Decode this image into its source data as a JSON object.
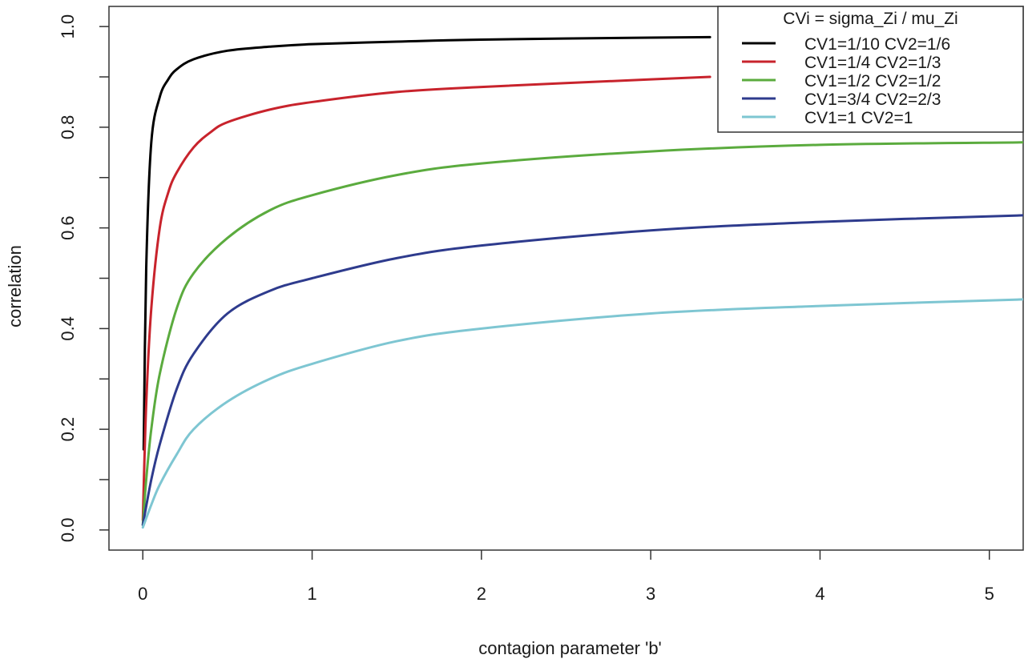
{
  "chart_data": {
    "type": "line",
    "title": "",
    "xlabel": "contagion parameter 'b'",
    "ylabel": "correlation",
    "xlim": [
      -0.2,
      5.2
    ],
    "ylim": [
      -0.04,
      1.04
    ],
    "x_ticks": [
      0,
      1,
      2,
      3,
      4,
      5
    ],
    "x_tick_labels": [
      "0",
      "1",
      "2",
      "3",
      "4",
      "5"
    ],
    "y_ticks": [
      0.0,
      0.1,
      0.2,
      0.3,
      0.4,
      0.5,
      0.6,
      0.7,
      0.8,
      0.9,
      1.0
    ],
    "y_tick_labels": [
      "0.0",
      "",
      "0.2",
      "",
      "0.4",
      "",
      "0.6",
      "",
      "0.8",
      "",
      "1.0"
    ],
    "grid": false,
    "legend": {
      "title": "CVi = sigma_Zi / mu_Zi",
      "placement": "top-right"
    },
    "series": [
      {
        "name": "CV1=1/10 CV2=1/6",
        "color": "#000000",
        "x": [
          0.005,
          0.02,
          0.05,
          0.1,
          0.15,
          0.2,
          0.3,
          0.5,
          0.75,
          1.0,
          1.5,
          2.0,
          3.0,
          3.35
        ],
        "y": [
          0.16,
          0.52,
          0.77,
          0.86,
          0.895,
          0.915,
          0.935,
          0.952,
          0.96,
          0.965,
          0.97,
          0.974,
          0.978,
          0.979
        ]
      },
      {
        "name": "CV1=1/4 CV2=1/3",
        "color": "#c8232c",
        "x": [
          0.0,
          0.02,
          0.05,
          0.1,
          0.15,
          0.2,
          0.3,
          0.4,
          0.5,
          0.75,
          1.0,
          1.5,
          2.0,
          3.0,
          3.35
        ],
        "y": [
          0.02,
          0.25,
          0.44,
          0.6,
          0.67,
          0.71,
          0.76,
          0.79,
          0.81,
          0.835,
          0.85,
          0.87,
          0.88,
          0.895,
          0.9
        ]
      },
      {
        "name": "CV1=1/2 CV2=1/2",
        "color": "#5bab3e",
        "x": [
          0.0,
          0.02,
          0.05,
          0.1,
          0.2,
          0.3,
          0.5,
          0.75,
          1.0,
          1.5,
          2.0,
          3.0,
          4.0,
          5.2
        ],
        "y": [
          0.01,
          0.1,
          0.2,
          0.31,
          0.44,
          0.51,
          0.58,
          0.635,
          0.665,
          0.705,
          0.728,
          0.752,
          0.765,
          0.77
        ]
      },
      {
        "name": "CV1=3/4 CV2=2/3",
        "color": "#2e3b8d",
        "x": [
          0.0,
          0.05,
          0.1,
          0.2,
          0.3,
          0.5,
          0.75,
          1.0,
          1.5,
          2.0,
          3.0,
          4.0,
          5.2
        ],
        "y": [
          0.01,
          0.1,
          0.17,
          0.28,
          0.35,
          0.43,
          0.475,
          0.5,
          0.54,
          0.565,
          0.595,
          0.612,
          0.625
        ]
      },
      {
        "name": "CV1=1 CV2=1",
        "color": "#7ec6d2",
        "x": [
          0.0,
          0.05,
          0.1,
          0.2,
          0.3,
          0.5,
          0.75,
          1.0,
          1.5,
          2.0,
          3.0,
          4.0,
          5.2
        ],
        "y": [
          0.005,
          0.05,
          0.09,
          0.15,
          0.2,
          0.255,
          0.3,
          0.33,
          0.375,
          0.4,
          0.43,
          0.445,
          0.458
        ]
      }
    ]
  }
}
